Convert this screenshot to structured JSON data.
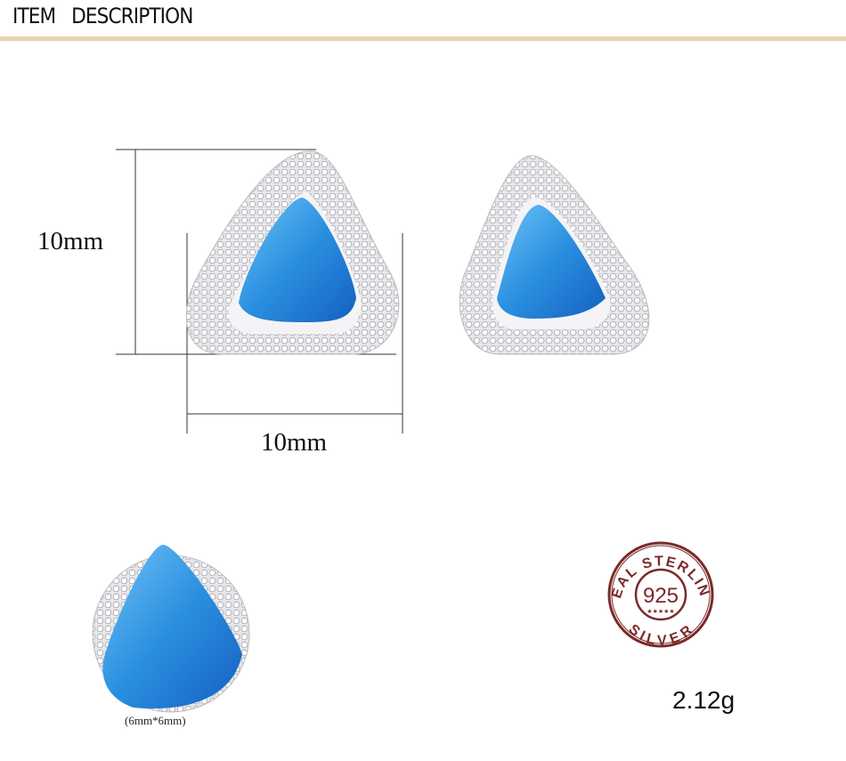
{
  "header": {
    "title": "ITEM   DESCRIPTION",
    "rule_color": "#e8d2b4"
  },
  "dimensions": {
    "height_label": "10mm",
    "width_label": "10mm"
  },
  "stone_size": "(6mm*6mm)",
  "stamp": {
    "top_text": "REAL STERLING",
    "center_text": "925",
    "bottom_text": "SILVER",
    "stars": "★★★★★",
    "color": "#7a2a2a"
  },
  "weight": "2.12g",
  "colors": {
    "opal": "#2a8fe0",
    "silver": "#d8d8dc"
  }
}
